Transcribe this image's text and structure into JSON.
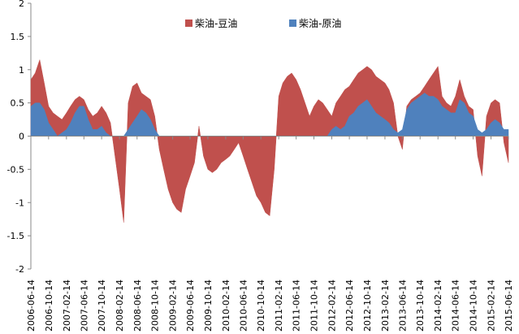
{
  "chart_data": {
    "type": "area",
    "title": "",
    "xlabel": "",
    "ylabel": "",
    "ylim": [
      -2,
      2
    ],
    "yticks": [
      "2",
      "1.5",
      "1",
      "0.5",
      "0",
      "-0.5",
      "-1",
      "-1.5",
      "-2"
    ],
    "grid": false,
    "legend_position": "top-center",
    "x_tick_labels": [
      "2006-06-14",
      "2006-10-14",
      "2007-02-14",
      "2007-06-14",
      "2007-10-14",
      "2008-02-14",
      "2008-06-14",
      "2008-10-14",
      "2009-02-14",
      "2009-06-14",
      "2009-10-14",
      "2010-02-14",
      "2010-06-14",
      "2010-10-14",
      "2011-02-14",
      "2011-06-14",
      "2011-10-14",
      "2012-02-14",
      "2012-06-14",
      "2012-10-14",
      "2013-02-14",
      "2013-06-14",
      "2013-10-14",
      "2014-02-14",
      "2014-06-14",
      "2014-10-14",
      "2015-02-14",
      "2015-06-14"
    ],
    "x": [
      "2006-06-14",
      "2006-07-14",
      "2006-08-14",
      "2006-09-14",
      "2006-10-14",
      "2006-11-14",
      "2006-12-14",
      "2007-01-14",
      "2007-02-14",
      "2007-03-14",
      "2007-04-14",
      "2007-05-14",
      "2007-06-14",
      "2007-07-14",
      "2007-08-14",
      "2007-09-14",
      "2007-10-14",
      "2007-11-14",
      "2007-12-14",
      "2008-01-14",
      "2008-02-14",
      "2008-03-14",
      "2008-04-14",
      "2008-05-14",
      "2008-06-14",
      "2008-07-14",
      "2008-08-14",
      "2008-09-14",
      "2008-10-14",
      "2008-11-14",
      "2008-12-14",
      "2009-01-14",
      "2009-02-14",
      "2009-03-14",
      "2009-04-14",
      "2009-05-14",
      "2009-06-14",
      "2009-07-14",
      "2009-08-14",
      "2009-09-14",
      "2009-10-14",
      "2009-11-14",
      "2009-12-14",
      "2010-01-14",
      "2010-02-14",
      "2010-03-14",
      "2010-04-14",
      "2010-05-14",
      "2010-06-14",
      "2010-07-14",
      "2010-08-14",
      "2010-09-14",
      "2010-10-14",
      "2010-11-14",
      "2010-12-14",
      "2011-01-14",
      "2011-02-14",
      "2011-03-14",
      "2011-04-14",
      "2011-05-14",
      "2011-06-14",
      "2011-07-14",
      "2011-08-14",
      "2011-09-14",
      "2011-10-14",
      "2011-11-14",
      "2011-12-14",
      "2012-01-14",
      "2012-02-14",
      "2012-03-14",
      "2012-04-14",
      "2012-05-14",
      "2012-06-14",
      "2012-07-14",
      "2012-08-14",
      "2012-09-14",
      "2012-10-14",
      "2012-11-14",
      "2012-12-14",
      "2013-01-14",
      "2013-02-14",
      "2013-03-14",
      "2013-04-14",
      "2013-05-14",
      "2013-06-14",
      "2013-07-14",
      "2013-08-14",
      "2013-09-14",
      "2013-10-14",
      "2013-11-14",
      "2013-12-14",
      "2014-01-14",
      "2014-02-14",
      "2014-03-14",
      "2014-04-14",
      "2014-05-14",
      "2014-06-14",
      "2014-07-14",
      "2014-08-14",
      "2014-09-14",
      "2014-10-14",
      "2014-11-14",
      "2014-12-14",
      "2015-01-14",
      "2015-02-14",
      "2015-03-14",
      "2015-04-14",
      "2015-05-14",
      "2015-06-14"
    ],
    "series": [
      {
        "name": "柴油-豆油",
        "color": "#c0504d",
        "values": [
          0.85,
          0.95,
          1.15,
          0.8,
          0.45,
          0.35,
          0.3,
          0.25,
          0.35,
          0.45,
          0.55,
          0.6,
          0.55,
          0.4,
          0.3,
          0.35,
          0.45,
          0.35,
          0.2,
          -0.3,
          -0.8,
          -1.3,
          0.5,
          0.75,
          0.8,
          0.65,
          0.6,
          0.55,
          0.3,
          -0.2,
          -0.5,
          -0.8,
          -1.0,
          -1.1,
          -1.15,
          -0.8,
          -0.6,
          -0.4,
          0.15,
          -0.3,
          -0.5,
          -0.55,
          -0.5,
          -0.4,
          -0.35,
          -0.3,
          -0.2,
          -0.1,
          -0.3,
          -0.5,
          -0.7,
          -0.9,
          -1.0,
          -1.15,
          -1.2,
          -0.5,
          0.6,
          0.8,
          0.9,
          0.95,
          0.85,
          0.7,
          0.5,
          0.3,
          0.45,
          0.55,
          0.5,
          0.4,
          0.3,
          0.5,
          0.6,
          0.7,
          0.75,
          0.85,
          0.95,
          1.0,
          1.05,
          1.0,
          0.9,
          0.85,
          0.8,
          0.7,
          0.5,
          0.0,
          -0.2,
          0.45,
          0.55,
          0.6,
          0.65,
          0.75,
          0.85,
          0.95,
          1.05,
          0.6,
          0.5,
          0.45,
          0.6,
          0.85,
          0.6,
          0.45,
          0.4,
          -0.3,
          -0.6,
          0.3,
          0.5,
          0.55,
          0.5,
          -0.1,
          -0.4
        ]
      },
      {
        "name": "柴油-原油",
        "color": "#4f81bd",
        "values": [
          0.45,
          0.5,
          0.5,
          0.4,
          0.2,
          0.1,
          0.0,
          0.05,
          0.1,
          0.2,
          0.35,
          0.45,
          0.45,
          0.25,
          0.1,
          0.1,
          0.15,
          0.05,
          0.0,
          0.0,
          0.0,
          0.0,
          0.1,
          0.2,
          0.3,
          0.4,
          0.35,
          0.25,
          0.1,
          0.0,
          0.0,
          0.0,
          0.0,
          0.0,
          0.0,
          0.0,
          0.0,
          0.0,
          0.0,
          0.0,
          0.0,
          0.0,
          0.0,
          0.0,
          0.0,
          0.0,
          0.0,
          0.0,
          0.0,
          0.0,
          0.0,
          0.0,
          0.0,
          0.0,
          0.0,
          0.0,
          0.0,
          0.0,
          0.0,
          0.0,
          0.0,
          0.0,
          0.0,
          0.0,
          0.0,
          0.0,
          0.0,
          0.0,
          0.1,
          0.15,
          0.1,
          0.15,
          0.3,
          0.35,
          0.45,
          0.5,
          0.55,
          0.45,
          0.35,
          0.3,
          0.25,
          0.2,
          0.1,
          0.05,
          0.1,
          0.4,
          0.5,
          0.55,
          0.6,
          0.65,
          0.6,
          0.6,
          0.55,
          0.45,
          0.4,
          0.35,
          0.35,
          0.55,
          0.5,
          0.35,
          0.3,
          0.1,
          0.05,
          0.1,
          0.2,
          0.25,
          0.2,
          0.1,
          0.1
        ]
      }
    ]
  }
}
